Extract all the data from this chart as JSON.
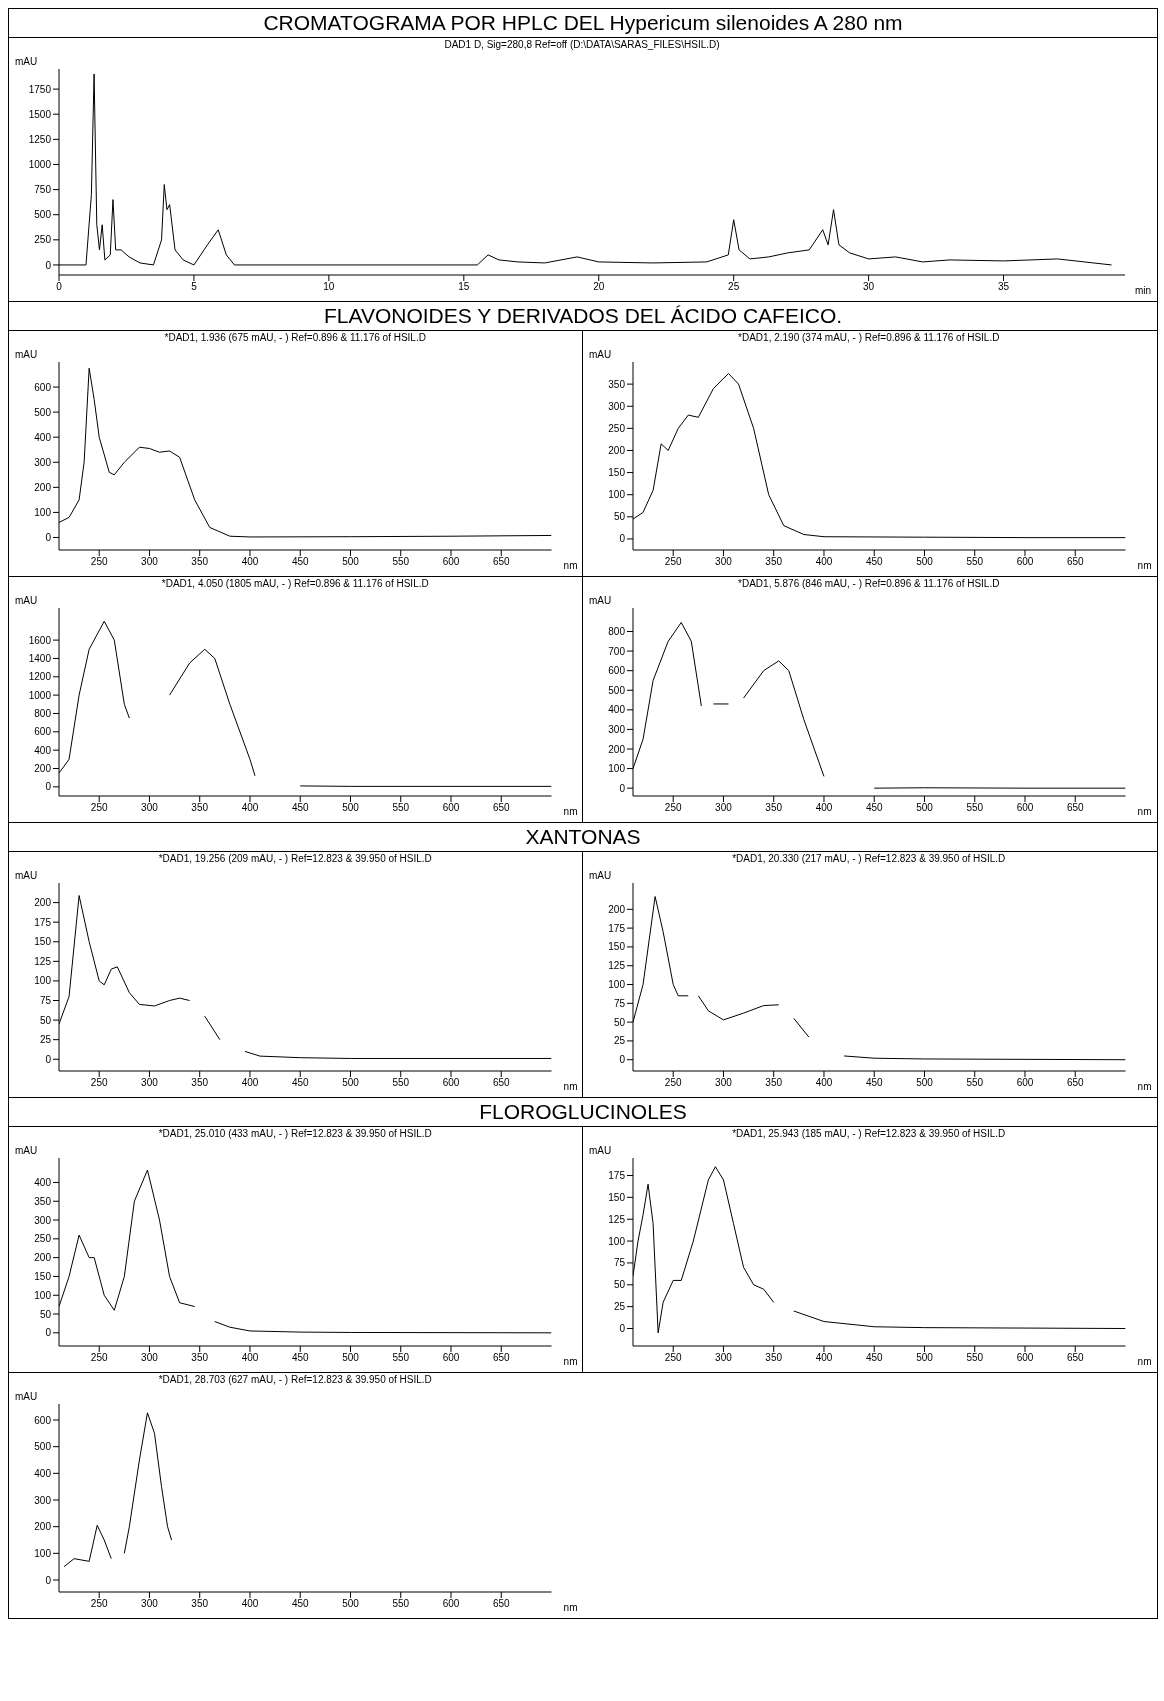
{
  "chart_data": [
    {
      "type": "line",
      "title": "CROMATOGRAMA POR HPLC DEL Hypericum silenoides A 280 nm",
      "subtitle": "DAD1 D, Sig=280,8 Ref=off (D:\\DATA\\SARAS_FILES\\HSIL.D)",
      "xlabel": "min",
      "ylabel": "mAU",
      "xlim": [
        0,
        39.5
      ],
      "xticks": [
        0,
        5,
        10,
        15,
        20,
        25,
        30,
        35
      ],
      "ylim": [
        -100,
        1950
      ],
      "yticks": [
        0,
        250,
        500,
        750,
        1000,
        1250,
        1500,
        1750
      ],
      "grid": false,
      "marker": "none",
      "line_style": "solid",
      "x": [
        0,
        1.0,
        1.2,
        1.3,
        1.4,
        1.5,
        1.6,
        1.7,
        1.9,
        2.0,
        2.1,
        2.3,
        2.6,
        3.0,
        3.5,
        3.8,
        3.9,
        4.0,
        4.1,
        4.3,
        4.6,
        5.0,
        5.5,
        5.9,
        6.2,
        6.5,
        8,
        10,
        12,
        14,
        15.5,
        15.9,
        16.3,
        17,
        18,
        19.2,
        20,
        22,
        24,
        24.8,
        25.0,
        25.2,
        25.6,
        26.3,
        27,
        27.8,
        28.3,
        28.5,
        28.7,
        28.9,
        29.3,
        30,
        31,
        32,
        33,
        35,
        37,
        39
      ],
      "series": [
        {
          "color": "#000000",
          "values": [
            0,
            0,
            700,
            1900,
            400,
            150,
            400,
            50,
            100,
            650,
            150,
            150,
            80,
            20,
            0,
            250,
            800,
            550,
            600,
            150,
            50,
            0,
            200,
            350,
            100,
            0,
            0,
            0,
            0,
            0,
            0,
            100,
            50,
            30,
            20,
            80,
            30,
            20,
            30,
            100,
            450,
            150,
            60,
            80,
            120,
            150,
            350,
            200,
            550,
            200,
            120,
            60,
            80,
            30,
            50,
            40,
            60,
            0
          ]
        }
      ]
    },
    {
      "type": "line",
      "title": "FLAVONOIDES Y DERIVADOS DEL ÁCIDO CAFEICO.",
      "subtitle": "*DAD1, 1.936 (675 mAU, - ) Ref=0.896 & 11.176 of HSIL.D",
      "xlabel": "nm",
      "ylabel": "mAU",
      "xlim": [
        210,
        700
      ],
      "xticks": [
        250,
        300,
        350,
        400,
        450,
        500,
        550,
        600,
        650
      ],
      "ylim": [
        -50,
        700
      ],
      "yticks": [
        0,
        100,
        200,
        300,
        400,
        500,
        600
      ],
      "grid": false,
      "marker": "none",
      "line_style": "solid",
      "x": [
        210,
        220,
        230,
        235,
        240,
        245,
        250,
        260,
        265,
        275,
        290,
        300,
        310,
        320,
        330,
        345,
        360,
        380,
        400,
        500,
        600,
        700
      ],
      "series": [
        {
          "color": "#000000",
          "values": [
            60,
            80,
            150,
            300,
            675,
            550,
            400,
            260,
            250,
            300,
            360,
            355,
            340,
            345,
            320,
            150,
            40,
            5,
            2,
            3,
            5,
            8
          ]
        }
      ]
    },
    {
      "type": "line",
      "subtitle": "*DAD1, 2.190 (374 mAU, - ) Ref=0.896 & 11.176 of HSIL.D",
      "xlabel": "nm",
      "ylabel": "mAU",
      "xlim": [
        210,
        700
      ],
      "xticks": [
        250,
        300,
        350,
        400,
        450,
        500,
        550,
        600,
        650
      ],
      "ylim": [
        -25,
        400
      ],
      "yticks": [
        0,
        50,
        100,
        150,
        200,
        250,
        300,
        350
      ],
      "grid": false,
      "marker": "none",
      "line_style": "solid",
      "x": [
        210,
        220,
        230,
        238,
        245,
        255,
        265,
        275,
        290,
        305,
        315,
        330,
        345,
        360,
        380,
        400,
        500,
        600,
        700
      ],
      "series": [
        {
          "color": "#000000",
          "values": [
            45,
            60,
            110,
            215,
            200,
            250,
            280,
            275,
            340,
            374,
            350,
            250,
            100,
            30,
            10,
            5,
            4,
            3,
            3
          ]
        }
      ]
    },
    {
      "type": "line",
      "subtitle": "*DAD1, 4.050 (1805 mAU, - ) Ref=0.896 & 11.176 of HSIL.D",
      "xlabel": "nm",
      "ylabel": "mAU",
      "xlim": [
        210,
        700
      ],
      "xticks": [
        250,
        300,
        350,
        400,
        450,
        500,
        550,
        600,
        650
      ],
      "ylim": [
        -100,
        1950
      ],
      "yticks": [
        0,
        200,
        400,
        600,
        800,
        1000,
        1200,
        1400,
        1600
      ],
      "grid": false,
      "marker": "none",
      "line_style": "solid",
      "x": [
        210,
        220,
        230,
        240,
        255,
        265,
        275,
        280,
        300,
        320,
        340,
        355,
        365,
        380,
        400,
        405,
        430,
        450,
        500,
        600,
        700
      ],
      "series": [
        {
          "color": "#000000",
          "values": [
            150,
            300,
            1000,
            1500,
            1805,
            1600,
            900,
            750,
            null,
            1000,
            1350,
            1500,
            1400,
            900,
            300,
            120,
            null,
            10,
            5,
            5,
            5
          ]
        }
      ]
    },
    {
      "type": "line",
      "subtitle": "*DAD1, 5.876 (846 mAU, - ) Ref=0.896 & 11.176 of HSIL.D",
      "xlabel": "nm",
      "ylabel": "mAU",
      "xlim": [
        210,
        700
      ],
      "xticks": [
        250,
        300,
        350,
        400,
        450,
        500,
        550,
        600,
        650
      ],
      "ylim": [
        -40,
        920
      ],
      "yticks": [
        0,
        100,
        200,
        300,
        400,
        500,
        600,
        700,
        800
      ],
      "grid": false,
      "marker": "none",
      "line_style": "solid",
      "x": [
        210,
        220,
        230,
        245,
        258,
        268,
        278,
        285,
        290,
        305,
        312,
        320,
        340,
        355,
        365,
        380,
        400,
        430,
        450,
        500,
        600,
        700
      ],
      "series": [
        {
          "color": "#000000",
          "values": [
            100,
            250,
            550,
            750,
            846,
            750,
            420,
            null,
            430,
            430,
            null,
            460,
            600,
            650,
            600,
            350,
            60,
            null,
            0,
            2,
            0,
            0
          ]
        }
      ]
    },
    {
      "type": "line",
      "title": "XANTONAS",
      "subtitle": "*DAD1, 19.256 (209 mAU, - ) Ref=12.823 & 39.950 of HSIL.D",
      "xlabel": "nm",
      "ylabel": "mAU",
      "xlim": [
        210,
        700
      ],
      "xticks": [
        250,
        300,
        350,
        400,
        450,
        500,
        550,
        600,
        650
      ],
      "ylim": [
        -15,
        225
      ],
      "yticks": [
        0,
        25,
        50,
        75,
        100,
        125,
        150,
        175,
        200
      ],
      "grid": false,
      "marker": "none",
      "line_style": "solid",
      "x": [
        210,
        220,
        230,
        240,
        250,
        255,
        262,
        268,
        280,
        290,
        305,
        320,
        330,
        340,
        350,
        355,
        370,
        380,
        395,
        410,
        450,
        500,
        600,
        700
      ],
      "series": [
        {
          "color": "#000000",
          "values": [
            45,
            80,
            209,
            150,
            100,
            95,
            115,
            118,
            85,
            70,
            68,
            75,
            78,
            75,
            null,
            55,
            25,
            null,
            10,
            4,
            2,
            1,
            1,
            1
          ]
        }
      ]
    },
    {
      "type": "line",
      "subtitle": "*DAD1, 20.330 (217 mAU, - ) Ref=12.823 & 39.950 of HSIL.D",
      "xlabel": "nm",
      "ylabel": "mAU",
      "xlim": [
        210,
        700
      ],
      "xticks": [
        250,
        300,
        350,
        400,
        450,
        500,
        550,
        600,
        650
      ],
      "ylim": [
        -15,
        235
      ],
      "yticks": [
        0,
        25,
        50,
        75,
        100,
        125,
        150,
        175,
        200
      ],
      "grid": false,
      "marker": "none",
      "line_style": "solid",
      "x": [
        210,
        220,
        232,
        240,
        250,
        255,
        265,
        270,
        275,
        285,
        300,
        320,
        340,
        355,
        360,
        370,
        385,
        400,
        420,
        450,
        500,
        700
      ],
      "series": [
        {
          "color": "#000000",
          "values": [
            50,
            100,
            217,
            170,
            100,
            85,
            85,
            null,
            85,
            65,
            53,
            62,
            72,
            73,
            null,
            55,
            30,
            null,
            5,
            2,
            1,
            0
          ]
        }
      ]
    },
    {
      "type": "line",
      "title": "FLOROGLUCINOLES",
      "subtitle": "*DAD1, 25.010 (433 mAU, - ) Ref=12.823 & 39.950 of HSIL.D",
      "xlabel": "nm",
      "ylabel": "mAU",
      "xlim": [
        210,
        700
      ],
      "xticks": [
        250,
        300,
        350,
        400,
        450,
        500,
        550,
        600,
        650
      ],
      "ylim": [
        -35,
        465
      ],
      "yticks": [
        0,
        50,
        100,
        150,
        200,
        250,
        300,
        350,
        400
      ],
      "grid": false,
      "marker": "none",
      "line_style": "solid",
      "x": [
        210,
        220,
        230,
        240,
        245,
        255,
        265,
        275,
        285,
        298,
        310,
        320,
        330,
        345,
        360,
        365,
        380,
        400,
        450,
        500,
        700
      ],
      "series": [
        {
          "color": "#000000",
          "values": [
            70,
            150,
            260,
            200,
            200,
            100,
            60,
            150,
            350,
            433,
            300,
            150,
            80,
            70,
            null,
            30,
            15,
            5,
            2,
            1,
            0
          ]
        }
      ]
    },
    {
      "type": "line",
      "subtitle": "*DAD1, 25.943 (185 mAU, - ) Ref=12.823 & 39.950 of HSIL.D",
      "xlabel": "nm",
      "ylabel": "mAU",
      "xlim": [
        210,
        700
      ],
      "xticks": [
        250,
        300,
        350,
        400,
        450,
        500,
        550,
        600,
        650
      ],
      "ylim": [
        -20,
        195
      ],
      "yticks": [
        0,
        25,
        50,
        75,
        100,
        125,
        150,
        175
      ],
      "grid": false,
      "marker": "none",
      "line_style": "solid",
      "x": [
        210,
        215,
        220,
        225,
        230,
        235,
        240,
        250,
        258,
        270,
        285,
        292,
        300,
        310,
        320,
        330,
        340,
        350,
        360,
        370,
        400,
        450,
        500,
        700
      ],
      "series": [
        {
          "color": "#000000",
          "values": [
            60,
            100,
            130,
            165,
            120,
            -5,
            30,
            55,
            55,
            100,
            170,
            185,
            170,
            120,
            70,
            50,
            45,
            30,
            null,
            20,
            8,
            2,
            1,
            0
          ]
        }
      ]
    },
    {
      "type": "line",
      "subtitle": "*DAD1, 28.703 (627 mAU, - ) Ref=12.823 & 39.950 of HSIL.D",
      "xlabel": "nm",
      "ylabel": "mAU",
      "xlim": [
        210,
        700
      ],
      "xticks": [
        250,
        300,
        350,
        400,
        450,
        500,
        550,
        600,
        650
      ],
      "ylim": [
        -45,
        660
      ],
      "yticks": [
        0,
        100,
        200,
        300,
        400,
        500,
        600
      ],
      "grid": false,
      "marker": "none",
      "line_style": "solid",
      "x": [
        215,
        225,
        240,
        248,
        255,
        262,
        270,
        275,
        280,
        290,
        298,
        305,
        312,
        318,
        322
      ],
      "series": [
        {
          "color": "#000000",
          "values": [
            50,
            80,
            70,
            205,
            150,
            80,
            null,
            100,
            200,
            450,
            627,
            550,
            350,
            200,
            150
          ]
        }
      ]
    }
  ]
}
